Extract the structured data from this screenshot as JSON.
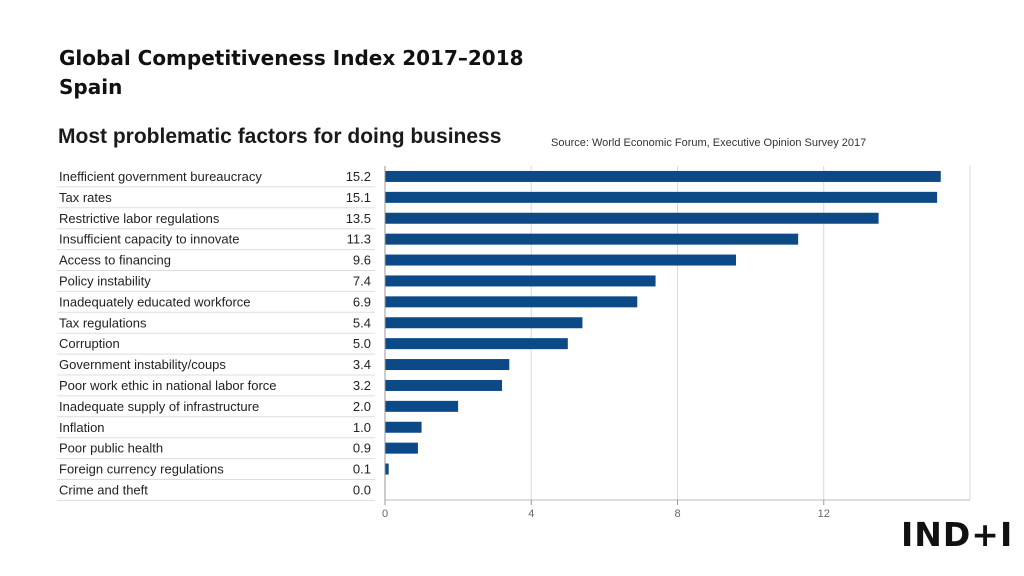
{
  "slide": {
    "title_line1": "Global Competitiveness Index 2017–2018",
    "title_line2": "Spain",
    "logo_text": "IND+I"
  },
  "chart_data": {
    "type": "bar",
    "orientation": "horizontal",
    "title": "Most problematic factors for doing business",
    "source": "Source: World Economic Forum, Executive Opinion Survey 2017",
    "categories": [
      "Inefficient government bureaucracy",
      "Tax rates",
      "Restrictive labor regulations",
      "Insufficient capacity to innovate",
      "Access to financing",
      "Policy instability",
      "Inadequately educated workforce",
      "Tax regulations",
      "Corruption",
      "Government instability/coups",
      "Poor work ethic in national labor force",
      "Inadequate supply of infrastructure",
      "Inflation",
      "Poor public health",
      "Foreign currency regulations",
      "Crime and theft"
    ],
    "values": [
      15.2,
      15.1,
      13.5,
      11.3,
      9.6,
      7.4,
      6.9,
      5.4,
      5.0,
      3.4,
      3.2,
      2.0,
      1.0,
      0.9,
      0.1,
      0.0
    ],
    "value_labels": [
      "15.2",
      "15.1",
      "13.5",
      "11.3",
      "9.6",
      "7.4",
      "6.9",
      "5.4",
      "5.0",
      "3.4",
      "3.2",
      "2.0",
      "1.0",
      "0.9",
      "0.1",
      "0.0"
    ],
    "xticks": [
      0,
      4,
      8,
      12
    ],
    "xlim": [
      0,
      16
    ],
    "grid": true,
    "bar_color": "#0b4a86",
    "grid_color": "#d9d9d9"
  }
}
